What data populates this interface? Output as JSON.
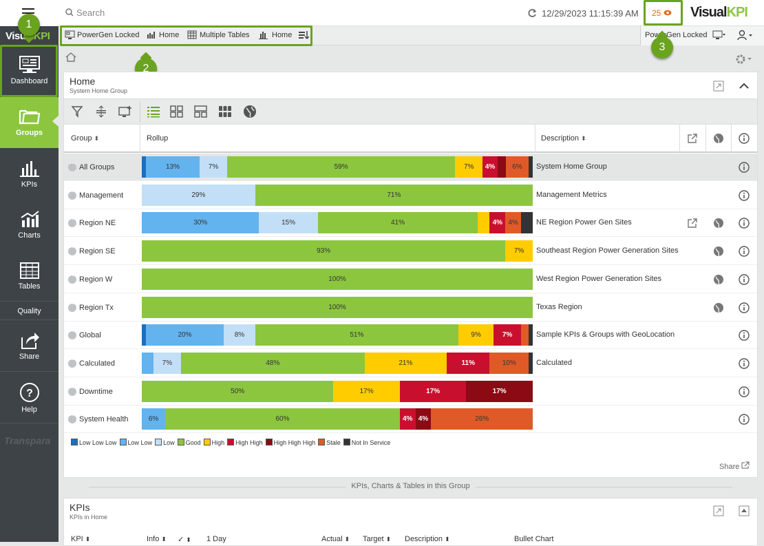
{
  "header": {
    "search_placeholder": "Search",
    "datetime": "12/29/2023 11:15:39 AM",
    "alert_count": "25",
    "logo_a": "Visual",
    "logo_b": "KPI"
  },
  "sidebar": {
    "logo_a": "Visual",
    "logo_b": "KPI",
    "items": [
      {
        "label": "Dashboard"
      },
      {
        "label": "Groups"
      },
      {
        "label": "KPIs"
      },
      {
        "label": "Charts"
      },
      {
        "label": "Tables"
      },
      {
        "label": "Quality"
      },
      {
        "label": "Share"
      },
      {
        "label": "Help"
      }
    ],
    "footer": "Transpara"
  },
  "favorites": [
    {
      "label": "PowerGen Locked"
    },
    {
      "label": "Home"
    },
    {
      "label": "Multiple Tables"
    },
    {
      "label": "Home"
    }
  ],
  "right_fav": {
    "label": "PowerGen Locked"
  },
  "badges": [
    "1",
    "2",
    "3"
  ],
  "panel": {
    "title": "Home",
    "subtitle": "System Home Group",
    "columns": {
      "group": "Group",
      "rollup": "Rollup",
      "description": "Description"
    },
    "rows": [
      {
        "name": "All Groups",
        "desc": "System Home Group",
        "segs": [
          [
            "#1b6fbf",
            1,
            ""
          ],
          [
            "#63b3ee",
            14,
            "13%"
          ],
          [
            "#c3dff7",
            7,
            "7%"
          ],
          [
            "#8cc63f",
            59,
            "59%"
          ],
          [
            "#ffcc00",
            7,
            "7%"
          ],
          [
            "#c8102e",
            4,
            "4%"
          ],
          [
            "#8b0a14",
            2,
            ""
          ],
          [
            "#e05a28",
            6,
            "6%"
          ],
          [
            "#333333",
            1,
            ""
          ]
        ]
      },
      {
        "name": "Management",
        "desc": "Management Metrics",
        "segs": [
          [
            "#c3dff7",
            29,
            "29%"
          ],
          [
            "#8cc63f",
            71,
            "71%"
          ]
        ]
      },
      {
        "name": "Region NE",
        "desc": "NE Region Power Gen Sites",
        "segs": [
          [
            "#63b3ee",
            30,
            "30%"
          ],
          [
            "#c3dff7",
            15,
            "15%"
          ],
          [
            "#8cc63f",
            41,
            "41%"
          ],
          [
            "#ffcc00",
            3,
            ""
          ],
          [
            "#c8102e",
            4,
            "4%"
          ],
          [
            "#e05a28",
            4,
            "4%"
          ],
          [
            "#333333",
            3,
            ""
          ]
        ]
      },
      {
        "name": "Region SE",
        "desc": "Southeast Region Power Generation Sites",
        "segs": [
          [
            "#8cc63f",
            93,
            "93%"
          ],
          [
            "#ffcc00",
            7,
            "7%"
          ]
        ]
      },
      {
        "name": "Region W",
        "desc": "West Region Power Generation Sites",
        "segs": [
          [
            "#8cc63f",
            100,
            "100%"
          ]
        ]
      },
      {
        "name": "Region Tx",
        "desc": "Texas Region",
        "segs": [
          [
            "#8cc63f",
            100,
            "100%"
          ]
        ]
      },
      {
        "name": "Global",
        "desc": "Sample KPIs & Groups with GeoLocation",
        "segs": [
          [
            "#1b6fbf",
            1,
            ""
          ],
          [
            "#63b3ee",
            20,
            "20%"
          ],
          [
            "#c3dff7",
            8,
            "8%"
          ],
          [
            "#8cc63f",
            52,
            "51%"
          ],
          [
            "#ffcc00",
            9,
            "9%"
          ],
          [
            "#c8102e",
            7,
            "7%"
          ],
          [
            "#e05a28",
            2,
            ""
          ],
          [
            "#333333",
            1,
            ""
          ]
        ]
      },
      {
        "name": "Calculated",
        "desc": "Calculated",
        "segs": [
          [
            "#63b3ee",
            3,
            ""
          ],
          [
            "#c3dff7",
            7,
            "7%"
          ],
          [
            "#8cc63f",
            47,
            "48%"
          ],
          [
            "#ffcc00",
            21,
            "21%"
          ],
          [
            "#c8102e",
            11,
            "11%"
          ],
          [
            "#e05a28",
            10,
            "10%"
          ],
          [
            "#333333",
            1,
            ""
          ]
        ]
      },
      {
        "name": "Downtime",
        "desc": "",
        "segs": [
          [
            "#8cc63f",
            49,
            "50%"
          ],
          [
            "#ffcc00",
            17,
            "17%"
          ],
          [
            "#c8102e",
            17,
            "17%"
          ],
          [
            "#8b0a14",
            17,
            "17%"
          ]
        ]
      },
      {
        "name": "System Health",
        "desc": "",
        "segs": [
          [
            "#63b3ee",
            6,
            "6%"
          ],
          [
            "#8cc63f",
            60,
            "60%"
          ],
          [
            "#c8102e",
            4,
            "4%"
          ],
          [
            "#8b0a14",
            4,
            "4%"
          ],
          [
            "#e05a28",
            26,
            "26%"
          ]
        ]
      }
    ],
    "legend": [
      [
        "#1b6fbf",
        "Low Low Low"
      ],
      [
        "#63b3ee",
        "Low Low"
      ],
      [
        "#c3dff7",
        "Low"
      ],
      [
        "#8cc63f",
        "Good"
      ],
      [
        "#ffcc00",
        "High"
      ],
      [
        "#c8102e",
        "High High"
      ],
      [
        "#8b0a14",
        "High High High"
      ],
      [
        "#e05a28",
        "Stale"
      ],
      [
        "#333333",
        "Not In Service"
      ]
    ],
    "share": "Share"
  },
  "divider": "KPIs, Charts & Tables in this Group",
  "kpis": {
    "title": "KPIs",
    "subtitle": "KPIs in Home",
    "columns": [
      "KPI",
      "Info",
      "",
      "1 Day",
      "Actual",
      "Target",
      "Description",
      "Bullet Chart"
    ]
  }
}
